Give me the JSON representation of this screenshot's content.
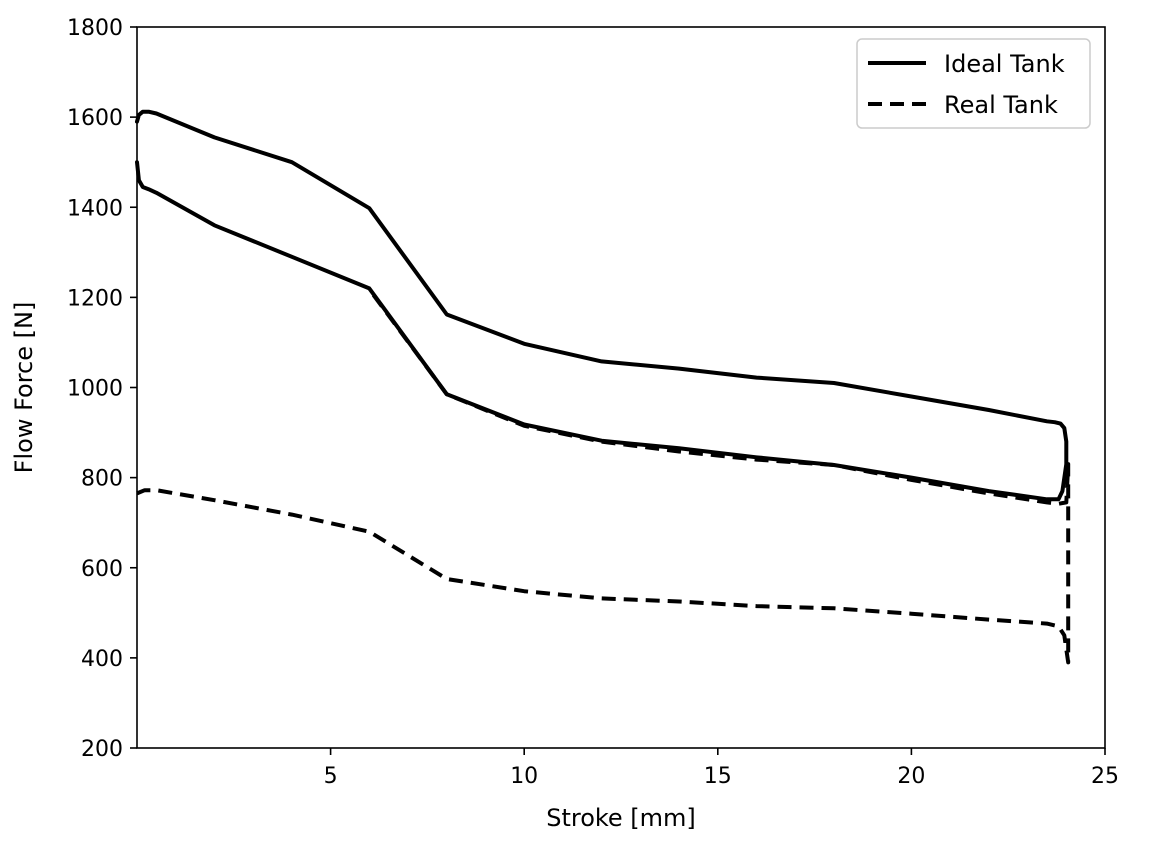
{
  "chart_data": {
    "type": "line",
    "title": "",
    "xlabel": "Stroke [mm]",
    "ylabel": "Flow Force [N]",
    "xlim": [
      0,
      25
    ],
    "ylim": [
      200,
      1800
    ],
    "xticks": [
      5,
      10,
      15,
      20,
      25
    ],
    "xtick_labels": [
      "5",
      "10",
      "15",
      "20",
      "25"
    ],
    "yticks": [
      200,
      400,
      600,
      800,
      1000,
      1200,
      1400,
      1600,
      1800
    ],
    "ytick_labels": [
      "200",
      "400",
      "600",
      "800",
      "1000",
      "1200",
      "1400",
      "1600",
      "1800"
    ],
    "grid": false,
    "legend": {
      "position": "top-right",
      "entries": [
        {
          "label": "Ideal Tank",
          "style": "solid"
        },
        {
          "label": "Real Tank",
          "style": "dashed"
        }
      ]
    },
    "series": [
      {
        "name": "Ideal Tank",
        "style": "solid",
        "color": "#000000",
        "x": [
          0.0,
          0.05,
          0.15,
          0.3,
          0.5,
          2,
          4,
          6,
          8,
          10,
          12,
          14,
          16,
          18,
          20,
          22,
          23.5,
          23.8,
          23.9,
          24.0,
          24.0,
          23.95,
          23.85,
          23.7,
          23.5,
          22,
          20,
          18,
          16,
          14,
          12,
          10,
          8,
          6,
          4,
          2,
          0.5,
          0.3,
          0.15,
          0.05,
          0.0
        ],
        "y": [
          1500,
          1460,
          1445,
          1440,
          1432,
          1360,
          1290,
          1220,
          985,
          918,
          882,
          865,
          845,
          828,
          800,
          770,
          752,
          752,
          770,
          830,
          880,
          910,
          920,
          923,
          925,
          950,
          980,
          1010,
          1022,
          1042,
          1058,
          1097,
          1162,
          1398,
          1500,
          1555,
          1608,
          1612,
          1612,
          1605,
          1590
        ]
      },
      {
        "name": "Real Tank",
        "style": "dashed",
        "color": "#000000",
        "x": [
          0.0,
          0.2,
          0.5,
          2,
          4,
          6,
          8,
          10,
          12,
          14,
          16,
          18,
          20,
          22,
          23.5,
          23.8,
          23.95,
          24.05,
          24.05,
          24.05,
          24.0,
          23.8,
          23.5,
          22,
          20,
          18,
          16,
          14,
          12,
          10,
          8,
          6
        ],
        "y": [
          765,
          772,
          772,
          750,
          718,
          680,
          575,
          548,
          532,
          525,
          515,
          510,
          498,
          485,
          476,
          470,
          450,
          390,
          600,
          830,
          745,
          742,
          745,
          765,
          795,
          828,
          840,
          858,
          880,
          915,
          985,
          1218
        ]
      }
    ]
  }
}
